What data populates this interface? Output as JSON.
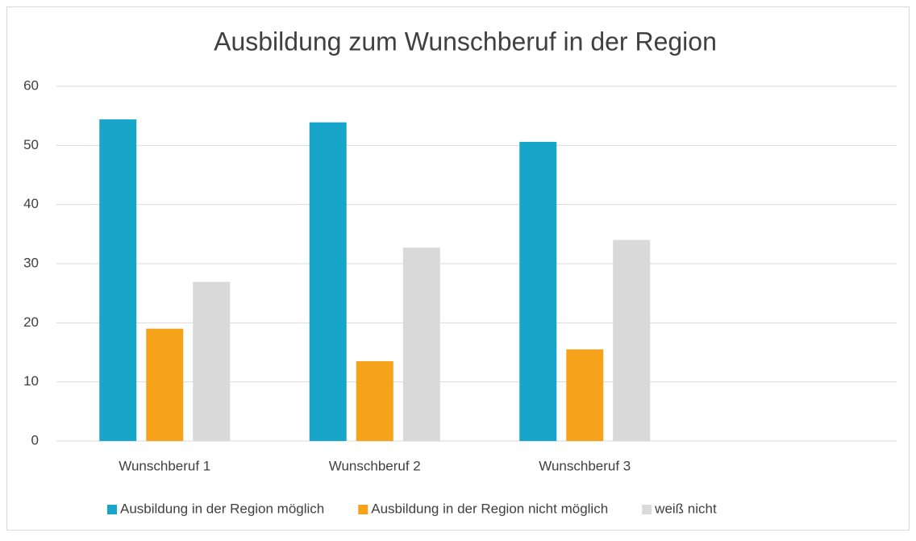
{
  "chart_data": {
    "type": "bar",
    "title": "Ausbildung zum Wunschberuf in der Region",
    "categories": [
      "Wunschberuf 1",
      "Wunschberuf 2",
      "Wunschberuf 3",
      null
    ],
    "series": [
      {
        "name": "Ausbildung in der Region möglich",
        "color": "#17a6c9",
        "values": [
          54.4,
          53.9,
          50.6,
          null
        ]
      },
      {
        "name": "Ausbildung in der Region nicht möglich",
        "color": "#f5a31a",
        "values": [
          19,
          13.5,
          15.5,
          null
        ]
      },
      {
        "name": "weiß nicht",
        "color": "#d9d9d9",
        "values": [
          26.9,
          32.7,
          34,
          null
        ]
      }
    ],
    "ylim": [
      0,
      60
    ],
    "yticks": [
      0,
      10,
      20,
      30,
      40,
      50,
      60
    ],
    "grid": true,
    "legend": "bottom"
  }
}
